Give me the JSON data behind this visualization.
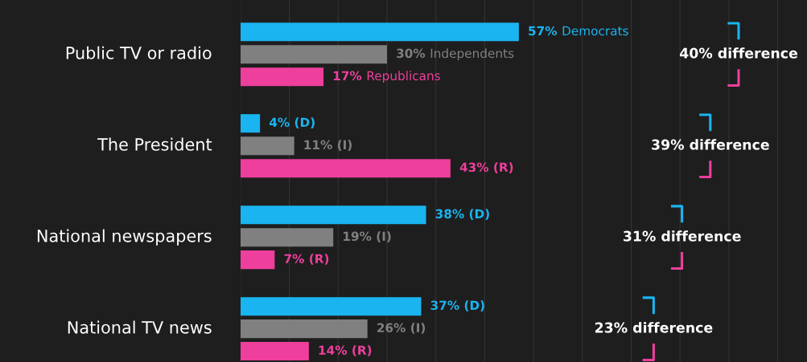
{
  "chart_data": {
    "type": "bar",
    "orientation": "horizontal",
    "categories": [
      "Public TV or radio",
      "The President",
      "National newspapers",
      "National TV news"
    ],
    "series": [
      {
        "name": "Democrats",
        "color": "#1ab4f0",
        "values": [
          57,
          4,
          38,
          37
        ],
        "value_labels": [
          "57%",
          "4% (D)",
          "38% (D)",
          "37% (D)"
        ]
      },
      {
        "name": "Independents",
        "color": "#808080",
        "values": [
          30,
          11,
          19,
          26
        ],
        "value_labels": [
          "30%",
          "11% (I)",
          "19% (I)",
          "26% (I)"
        ]
      },
      {
        "name": "Republicans",
        "color": "#ee3f9c",
        "values": [
          17,
          43,
          7,
          14
        ],
        "value_labels": [
          "17%",
          "43% (R)",
          "7% (R)",
          "14% (R)"
        ]
      }
    ],
    "xlim": [
      0,
      116
    ],
    "xticks": [
      {
        "value": 0,
        "label": null
      },
      {
        "value": 10,
        "label": null
      },
      {
        "value": 20,
        "label": null
      },
      {
        "value": 30,
        "label": null
      },
      {
        "value": 40,
        "label": null
      },
      {
        "value": 50,
        "label": null
      },
      {
        "value": 60,
        "label": null
      },
      {
        "value": 70,
        "label": null
      },
      {
        "value": 80,
        "label": null
      },
      {
        "value": 90,
        "label": null
      },
      {
        "value": 100,
        "label": null
      },
      {
        "value": 110,
        "label": null
      }
    ],
    "grid": "x",
    "legend": false,
    "annotations": [
      "40% difference",
      "39% difference",
      "31% difference",
      "23% difference"
    ]
  }
}
